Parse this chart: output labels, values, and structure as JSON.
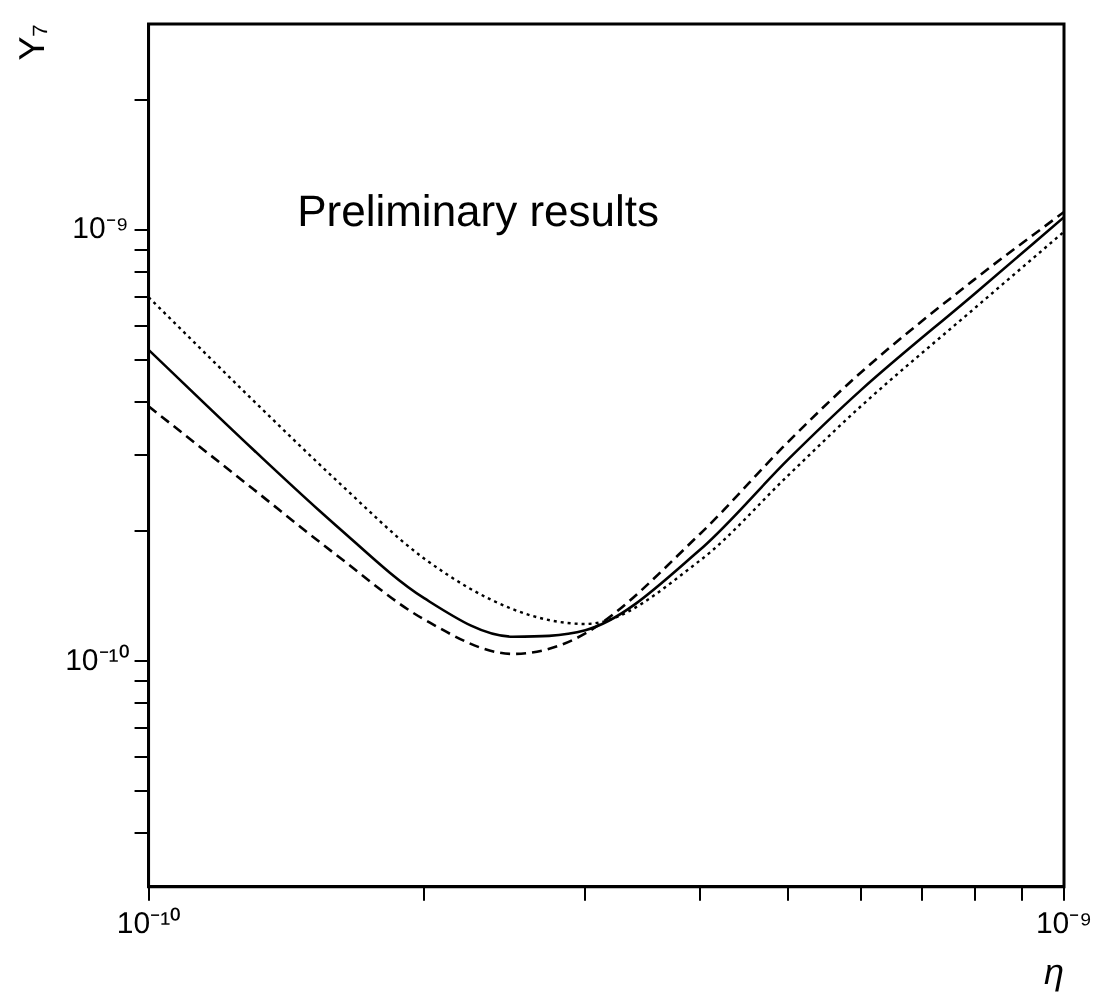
{
  "chart_data": {
    "type": "line",
    "ylabel": "Y₇",
    "xlabel": "η",
    "annotations": [
      "Preliminary results"
    ],
    "log": "xy",
    "grid": false,
    "legend": false,
    "marker": "none",
    "x": [
      1e-10,
      1.3e-10,
      1.6e-10,
      2e-10,
      2.5e-10,
      3e-10,
      4e-10,
      5e-10,
      6e-10,
      8e-10,
      1e-09
    ],
    "xlim": [
      1e-10,
      1e-09
    ],
    "ylim": [
      3e-11,
      3e-09
    ],
    "xticks": [
      {
        "value": 1e-10,
        "label": "10⁻¹⁰"
      },
      {
        "value": 2e-10,
        "label": null
      },
      {
        "value": 3e-10,
        "label": null
      },
      {
        "value": 4e-10,
        "label": null
      },
      {
        "value": 5e-10,
        "label": null
      },
      {
        "value": 6e-10,
        "label": null
      },
      {
        "value": 7e-10,
        "label": null
      },
      {
        "value": 8e-10,
        "label": null
      },
      {
        "value": 9e-10,
        "label": null
      },
      {
        "value": 1e-09,
        "label": "10⁻⁹"
      }
    ],
    "yticks": [
      {
        "value": 4e-11,
        "label": null
      },
      {
        "value": 5e-11,
        "label": null
      },
      {
        "value": 6e-11,
        "label": null
      },
      {
        "value": 7e-11,
        "label": null
      },
      {
        "value": 8e-11,
        "label": null
      },
      {
        "value": 9e-11,
        "label": null
      },
      {
        "value": 1e-10,
        "label": "10⁻¹⁰"
      },
      {
        "value": 2e-10,
        "label": null
      },
      {
        "value": 3e-10,
        "label": null
      },
      {
        "value": 4e-10,
        "label": null
      },
      {
        "value": 5e-10,
        "label": null
      },
      {
        "value": 6e-10,
        "label": null
      },
      {
        "value": 7e-10,
        "label": null
      },
      {
        "value": 8e-10,
        "label": null
      },
      {
        "value": 9e-10,
        "label": null
      },
      {
        "value": 1e-09,
        "label": "10⁻⁹"
      },
      {
        "value": 2e-09,
        "label": null
      }
    ],
    "series": [
      {
        "color": "#000000",
        "line_style": "solid",
        "values": [
          5.27e-10,
          3.1e-10,
          2.07e-10,
          1.4e-10,
          1.14e-10,
          1.18e-10,
          1.81e-10,
          2.94e-10,
          4.25e-10,
          7.13e-10,
          1.07e-09
        ]
      },
      {
        "color": "#000000",
        "line_style": "dotted",
        "values": [
          6.98e-10,
          4.03e-10,
          2.64e-10,
          1.73e-10,
          1.32e-10,
          1.22e-10,
          1.71e-10,
          2.7e-10,
          3.9e-10,
          6.6e-10,
          9.9e-10
        ]
      },
      {
        "color": "#000000",
        "line_style": "dashed",
        "values": [
          3.9e-10,
          2.51e-10,
          1.77e-10,
          1.25e-10,
          1.04e-10,
          1.16e-10,
          1.97e-10,
          3.23e-10,
          4.67e-10,
          7.7e-10,
          1.1e-09
        ]
      }
    ]
  }
}
